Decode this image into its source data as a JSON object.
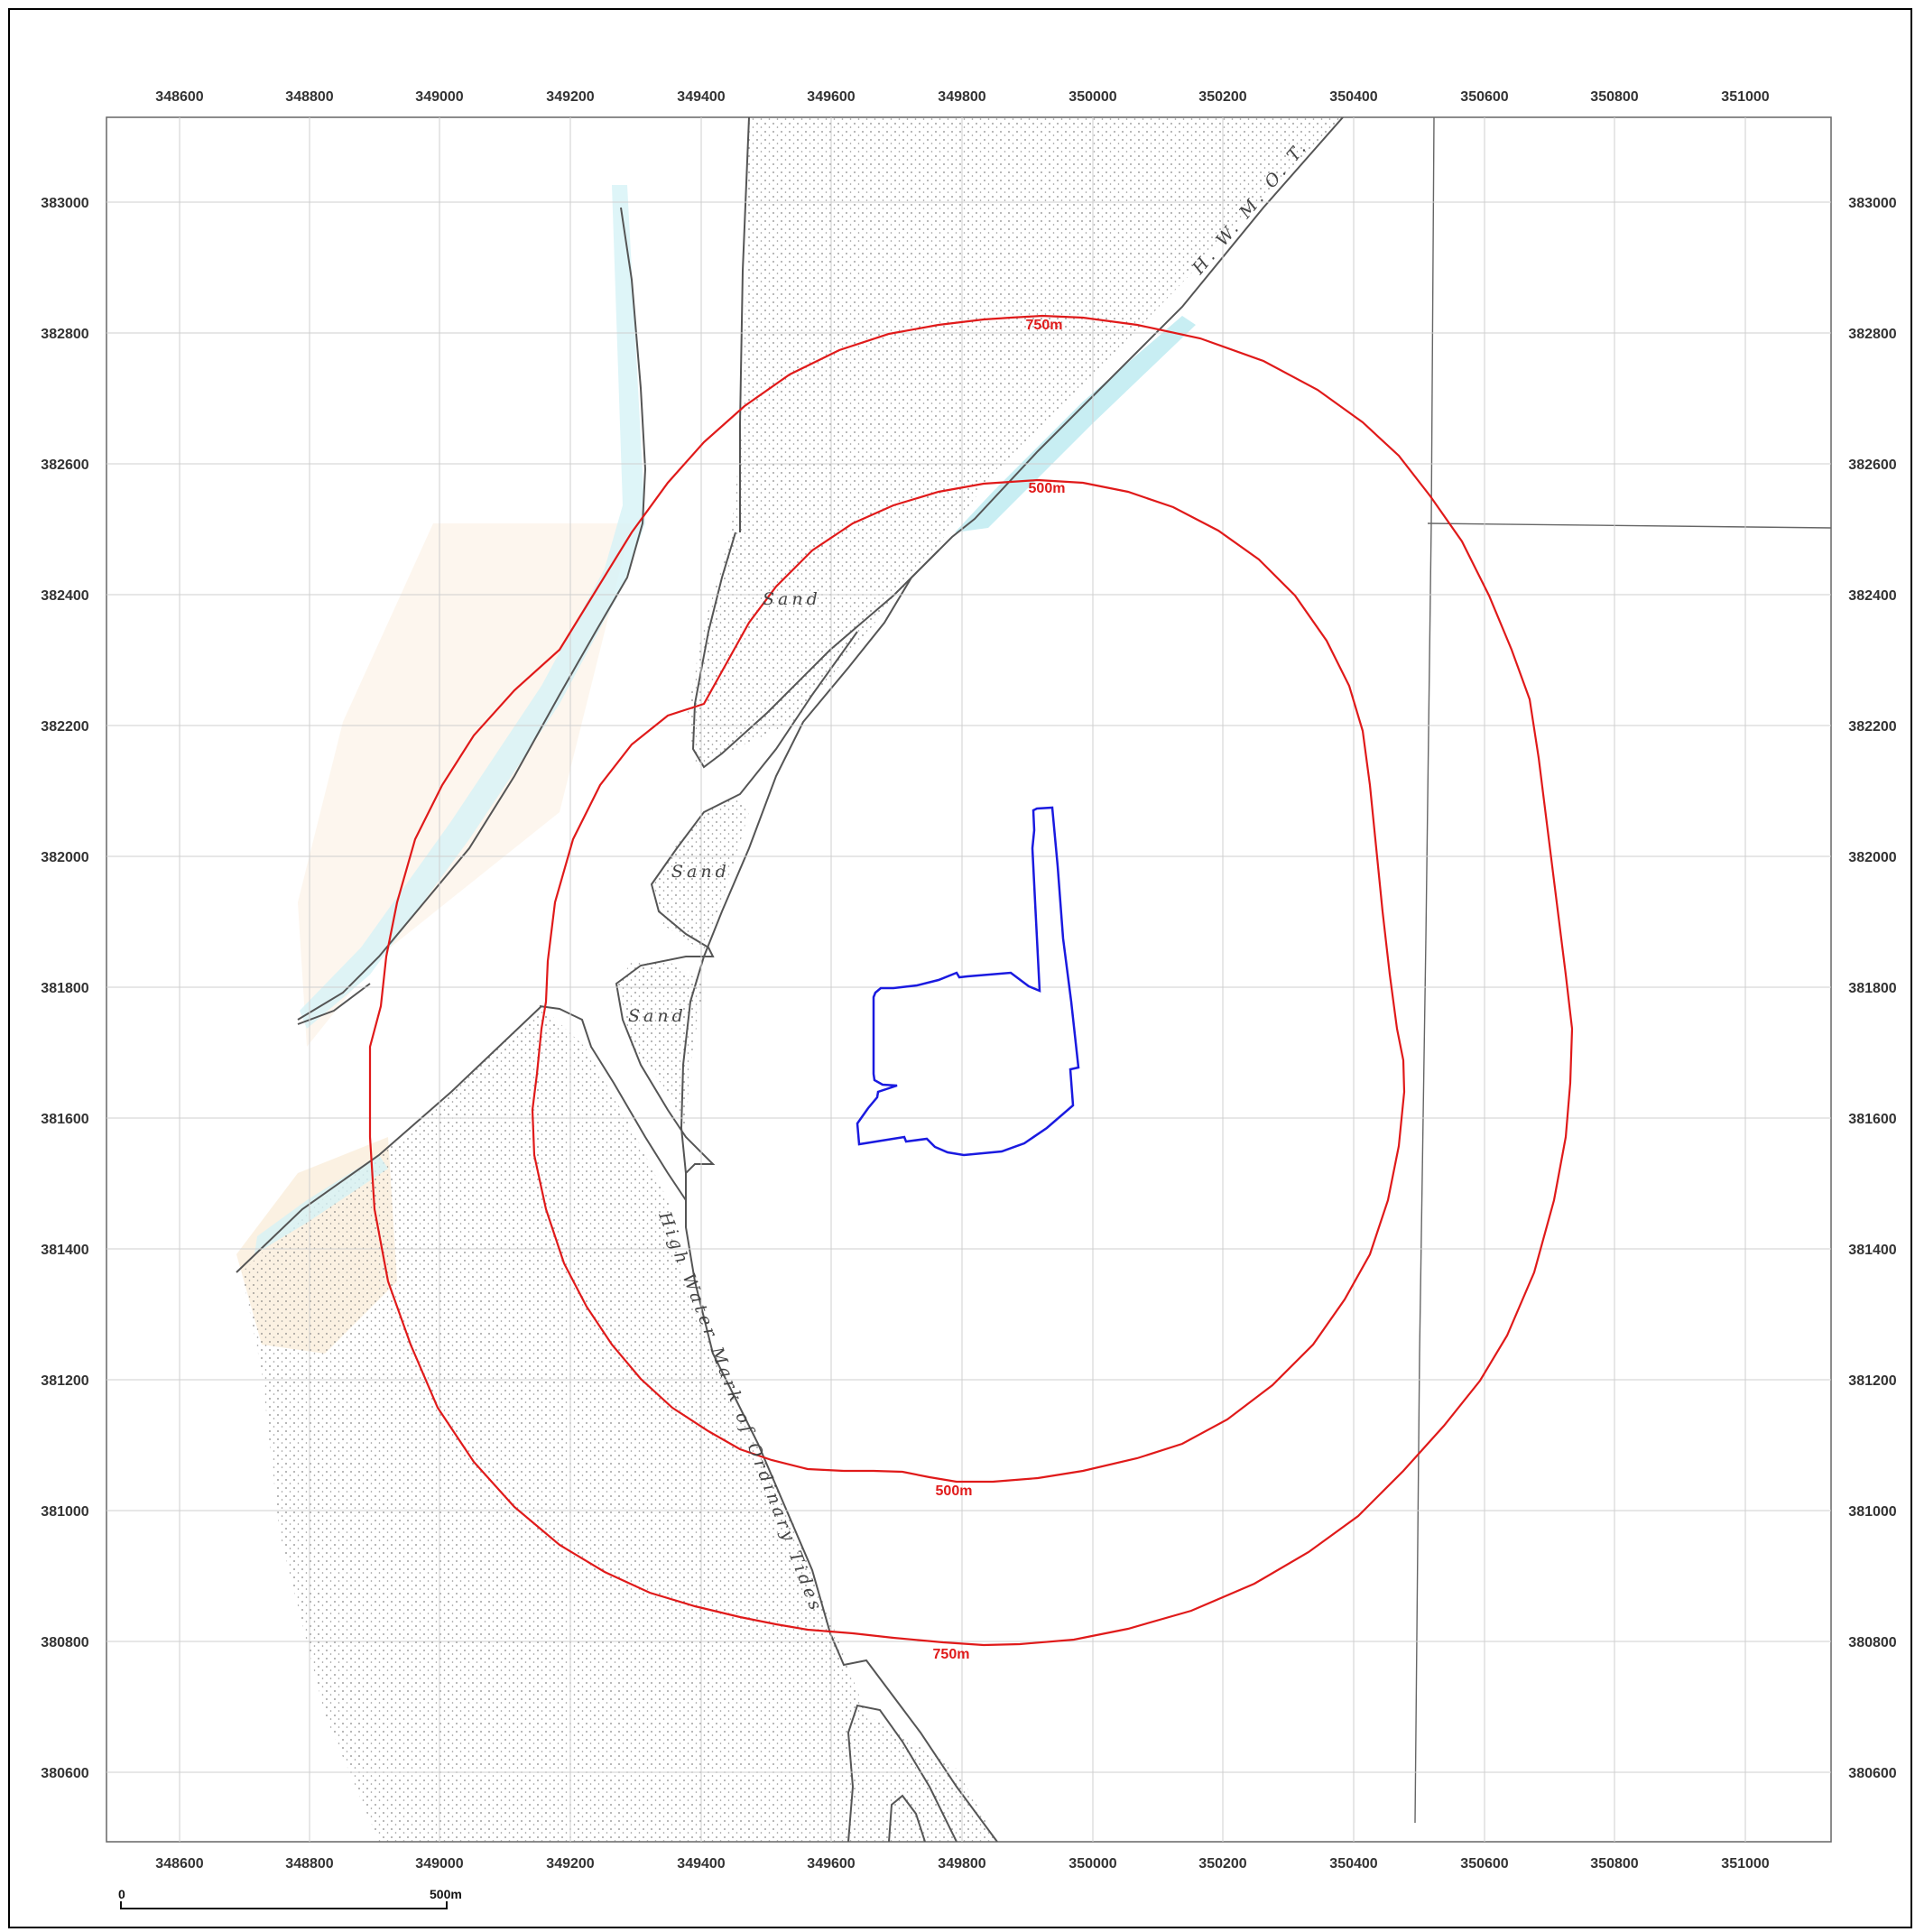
{
  "map": {
    "x_ticks": [
      "348600",
      "348800",
      "349000",
      "349200",
      "349400",
      "349600",
      "349800",
      "350000",
      "350200",
      "350400",
      "350600",
      "350800",
      "351000"
    ],
    "y_ticks": [
      "383000",
      "382800",
      "382600",
      "382400",
      "382200",
      "382000",
      "381800",
      "381600",
      "381400",
      "381200",
      "381000",
      "380800",
      "380600"
    ],
    "buffer_labels": {
      "outer_top": "750m",
      "outer_bottom": "750m",
      "inner_top": "500m",
      "inner_bottom": "500m"
    },
    "annotations": {
      "hwmot": "H. W. M. O. T.",
      "sand_1": "Sand",
      "sand_2": "Sand",
      "sand_3": "Sand",
      "high_water": "High Water Mark of Ordinary Tides"
    },
    "scale_bar": {
      "start": "0",
      "end": "500m"
    },
    "colors": {
      "buffer": "#e01a1a",
      "site_boundary": "#1a1ae0",
      "water": "#c8eef3",
      "grid": "#cfcfcf",
      "coast": "#555555"
    }
  }
}
